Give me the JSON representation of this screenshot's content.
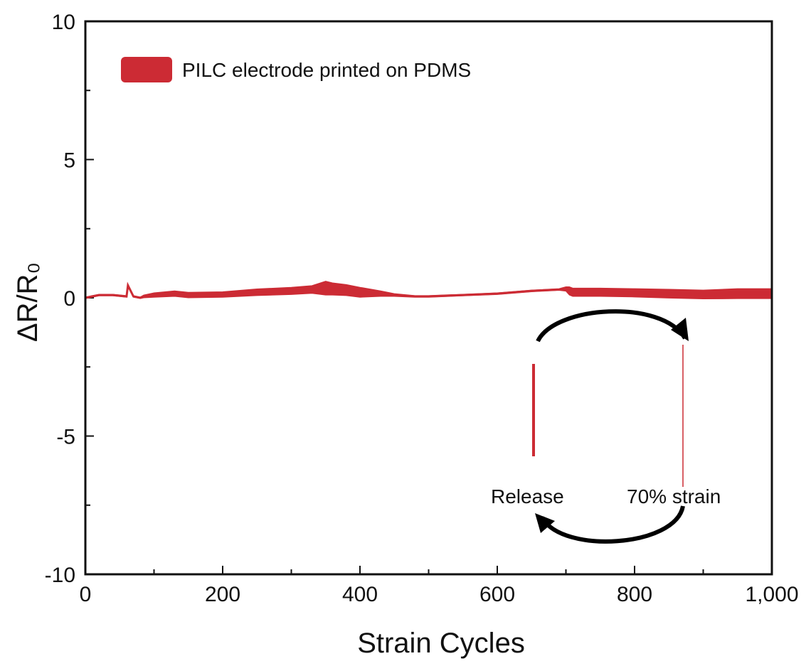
{
  "chart_data": {
    "type": "line",
    "title": "",
    "xlabel": "Strain Cycles",
    "ylabel": "ΔR/R₀",
    "xlim": [
      0,
      1000
    ],
    "ylim": [
      -10,
      10
    ],
    "xticks": [
      0,
      200,
      400,
      600,
      800,
      1000
    ],
    "xtick_labels": [
      "0",
      "200",
      "400",
      "600",
      "800",
      "1,000"
    ],
    "yticks": [
      -10,
      -5,
      0,
      5,
      10
    ],
    "ytick_labels": [
      "-10",
      "-5",
      "0",
      "5",
      "10"
    ],
    "grid": false,
    "legend_position": "top-left",
    "series": [
      {
        "name": "PILC electrode printed on PDMS",
        "color": "#cc2b34",
        "x": [
          0,
          10,
          20,
          40,
          60,
          62,
          70,
          80,
          85,
          100,
          130,
          150,
          200,
          250,
          300,
          330,
          350,
          360,
          380,
          400,
          430,
          450,
          480,
          500,
          550,
          600,
          650,
          690,
          700,
          705,
          710,
          750,
          800,
          850,
          900,
          950,
          1000
        ],
        "y": [
          0,
          0.05,
          0.1,
          0.1,
          0.05,
          0.45,
          0.05,
          0,
          0.05,
          0.1,
          0.15,
          0.1,
          0.12,
          0.2,
          0.25,
          0.3,
          0.35,
          0.32,
          0.28,
          0.2,
          0.15,
          0.1,
          0.05,
          0.05,
          0.1,
          0.15,
          0.25,
          0.3,
          0.32,
          0.25,
          0.2,
          0.2,
          0.18,
          0.15,
          0.12,
          0.15,
          0.15
        ],
        "band_halfwidth": [
          0.03,
          0.03,
          0.03,
          0.03,
          0.03,
          0.03,
          0.03,
          0.03,
          0.05,
          0.08,
          0.1,
          0.1,
          0.1,
          0.12,
          0.13,
          0.14,
          0.25,
          0.22,
          0.2,
          0.18,
          0.1,
          0.05,
          0.03,
          0.03,
          0.03,
          0.03,
          0.03,
          0.03,
          0.08,
          0.15,
          0.15,
          0.15,
          0.15,
          0.16,
          0.16,
          0.18,
          0.18
        ]
      }
    ],
    "annotations": {
      "release_label": "Release",
      "strain_label": "70% strain"
    }
  }
}
